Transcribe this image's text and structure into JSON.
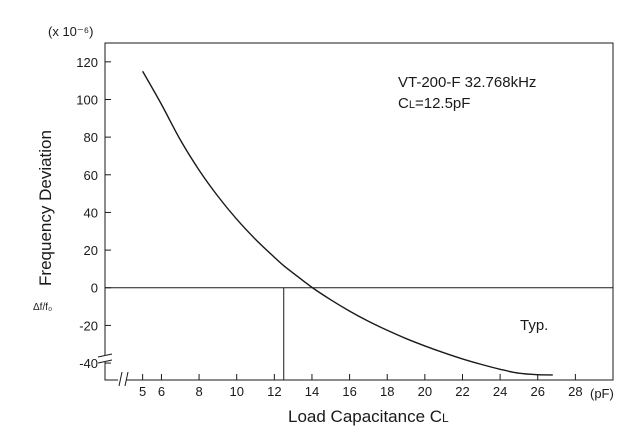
{
  "chart_data": {
    "type": "line",
    "xlabel": "Load Capacitance C",
    "xlabel_sub": "L",
    "ylabel": "Frequency Deviation",
    "ylabel_symbol": "Δf/f₀",
    "y_unit": "(x 10⁻⁶)",
    "x_unit": "(pF)",
    "xlim": [
      3,
      30
    ],
    "ylim": [
      -49,
      130
    ],
    "x_break": true,
    "y_break": true,
    "x_ticks": [
      5,
      6,
      8,
      10,
      12,
      14,
      16,
      18,
      20,
      22,
      24,
      26,
      28
    ],
    "y_ticks": [
      120,
      100,
      80,
      60,
      40,
      20,
      0,
      -20,
      -40
    ],
    "grid": false,
    "annotation": {
      "line1": "VT-200-F  32.768kHz",
      "line2_prefix": "C",
      "line2_sub": "L",
      "line2_suffix": "=12.5pF",
      "typ_label": "Typ."
    },
    "reference": {
      "x": 12.5,
      "y": 0
    },
    "series": [
      {
        "x": [
          5,
          6,
          7,
          8,
          9,
          10,
          11,
          12,
          12.5,
          13,
          14,
          15,
          16,
          17,
          18,
          19,
          20,
          21,
          22,
          23,
          24,
          25,
          26,
          26.8
        ],
        "y": [
          115,
          97.4,
          78.6,
          62.5,
          48.6,
          36.4,
          25.7,
          16.2,
          11.7,
          7.8,
          0.2,
          -6.4,
          -12.4,
          -17.8,
          -22.6,
          -27.0,
          -30.9,
          -34.5,
          -37.8,
          -40.7,
          -43.3,
          -45.4,
          -46.2,
          -46.3
        ]
      }
    ]
  }
}
